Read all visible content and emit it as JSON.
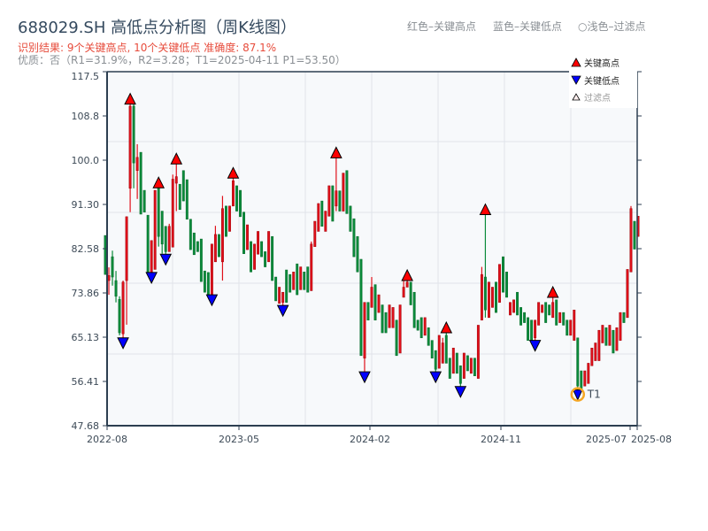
{
  "header": {
    "title": "688029.SH 高低点分析图（周K线图）",
    "result": "识别结果: 9个关键高点, 10个关键低点  准确度: 87.1%",
    "quality": "优质：否（R1=31.9%，R2=3.28；T1=2025-04-11 P1=53.50）",
    "color_key": [
      "红色–关键高点",
      "蓝色–关键低点",
      "○浅色–过滤点"
    ]
  },
  "colors": {
    "up": "#e0101a",
    "down": "#0a8a3a",
    "high_marker": "#ff0000",
    "low_marker": "#0000ff",
    "t1": "#f5a623"
  },
  "chart_data": {
    "type": "candlestick",
    "title": "688029.SH 高低点分析图（周K线图）",
    "ylim": [
      47.68,
      117.5
    ],
    "y_ticks": [
      "117.5",
      "108.8",
      "100.0",
      "91.30",
      "82.58",
      "73.86",
      "65.13",
      "56.41",
      "47.68"
    ],
    "x_ticks": [
      "2022-08",
      "2023-05",
      "2024-02",
      "2024-11",
      "2025-07",
      "2025-08"
    ],
    "grid": true,
    "legend_position": "top-right",
    "legend": [
      "关键高点",
      "关键低点",
      "过滤点"
    ],
    "annotation": "T1",
    "candle_fields": [
      "open",
      "high",
      "low",
      "close",
      "marker"
    ],
    "candles": [
      [
        85.2,
        85.2,
        77.5,
        77.5,
        ""
      ],
      [
        76.3,
        78.9,
        73.5,
        77.3,
        ""
      ],
      [
        81.0,
        82.2,
        75.3,
        77.0,
        ""
      ],
      [
        76.3,
        78.2,
        72.0,
        73.2,
        ""
      ],
      [
        72.6,
        73.2,
        65.5,
        66.0,
        ""
      ],
      [
        65.8,
        76.3,
        65.0,
        76.0,
        "L"
      ],
      [
        76.3,
        88.9,
        67.6,
        88.9,
        ""
      ],
      [
        94.5,
        111.1,
        89.8,
        110.7,
        "H"
      ],
      [
        110.7,
        111.1,
        94.5,
        99.5,
        ""
      ],
      [
        98.0,
        103.2,
        92.4,
        100.6,
        ""
      ],
      [
        101.6,
        101.6,
        89.4,
        89.4,
        ""
      ],
      [
        94.1,
        94.1,
        89.8,
        89.8,
        ""
      ],
      [
        89.2,
        89.2,
        78.0,
        78.0,
        ""
      ],
      [
        77.9,
        84.2,
        77.9,
        84.2,
        "L"
      ],
      [
        78.5,
        94.1,
        78.5,
        94.1,
        ""
      ],
      [
        94.6,
        94.6,
        83.0,
        85.0,
        "H"
      ],
      [
        90.0,
        90.0,
        81.6,
        83.5,
        ""
      ],
      [
        87.0,
        87.0,
        81.5,
        82.0,
        "L"
      ],
      [
        82.0,
        87.5,
        82.0,
        87.0,
        ""
      ],
      [
        82.9,
        97.2,
        82.9,
        96.3,
        ""
      ],
      [
        95.5,
        99.3,
        90.0,
        96.8,
        "H"
      ],
      [
        95.3,
        95.3,
        90.3,
        90.3,
        ""
      ],
      [
        98,
        98,
        92,
        92,
        ""
      ],
      [
        96.2,
        96.2,
        88.4,
        88.4,
        ""
      ],
      [
        88.4,
        88.4,
        82.4,
        82.4,
        ""
      ],
      [
        85.7,
        85.7,
        81.4,
        81.4,
        ""
      ],
      [
        84,
        84,
        82,
        82,
        ""
      ],
      [
        84.5,
        84.5,
        76.1,
        76.1,
        ""
      ],
      [
        78.2,
        78.2,
        74.0,
        74.0,
        ""
      ],
      [
        77.9,
        77.9,
        73.5,
        73.5,
        ""
      ],
      [
        73.5,
        83.5,
        73.5,
        83.5,
        "L"
      ],
      [
        80,
        87.1,
        80,
        85.4,
        ""
      ],
      [
        85.4,
        85.4,
        81,
        81,
        ""
      ],
      [
        80,
        93,
        76.3,
        90.5,
        ""
      ],
      [
        91,
        91,
        85,
        85,
        ""
      ],
      [
        86,
        91,
        86,
        91,
        ""
      ],
      [
        91,
        96.5,
        91,
        96,
        "H"
      ],
      [
        95,
        95,
        90,
        90,
        ""
      ],
      [
        94.1,
        94.1,
        88.9,
        88.9,
        ""
      ],
      [
        89.8,
        89.8,
        81.6,
        81.6,
        ""
      ],
      [
        82.4,
        87.3,
        82.4,
        87.3,
        ""
      ],
      [
        84,
        84,
        78,
        78,
        ""
      ],
      [
        78.5,
        83.5,
        78.5,
        83.5,
        ""
      ],
      [
        81.5,
        86,
        81.5,
        86,
        ""
      ],
      [
        84,
        84,
        81,
        81,
        ""
      ],
      [
        82,
        82,
        79,
        79,
        ""
      ],
      [
        80,
        86,
        80,
        86,
        ""
      ],
      [
        85,
        85,
        76.3,
        76.3,
        ""
      ],
      [
        77,
        77,
        72.3,
        72.3,
        ""
      ],
      [
        71.8,
        75,
        71.8,
        75,
        ""
      ],
      [
        72,
        74,
        71.4,
        74,
        "L"
      ],
      [
        78.4,
        78.4,
        72,
        72,
        ""
      ],
      [
        77.5,
        77.5,
        74,
        74,
        ""
      ],
      [
        74.5,
        78,
        74.5,
        78,
        ""
      ],
      [
        79.6,
        79.6,
        73.5,
        73.5,
        ""
      ],
      [
        74.5,
        79,
        74.5,
        79,
        ""
      ],
      [
        78,
        78,
        74.5,
        74.5,
        ""
      ],
      [
        79,
        79,
        74,
        74,
        ""
      ],
      [
        74.3,
        84,
        74.3,
        83.5,
        ""
      ],
      [
        83,
        88,
        83,
        88,
        ""
      ],
      [
        86,
        91.5,
        86,
        91.5,
        ""
      ],
      [
        92,
        92,
        87,
        87,
        ""
      ],
      [
        86,
        90,
        86,
        90,
        ""
      ],
      [
        89,
        95,
        89,
        95,
        ""
      ],
      [
        95,
        95,
        88,
        88,
        ""
      ],
      [
        91,
        100.5,
        90,
        94,
        "H"
      ],
      [
        94,
        94,
        90,
        90,
        ""
      ],
      [
        90,
        97.5,
        90,
        97.5,
        ""
      ],
      [
        98,
        98,
        89.5,
        89.5,
        ""
      ],
      [
        91,
        91,
        86,
        86,
        ""
      ],
      [
        88.5,
        88.5,
        81,
        81,
        ""
      ],
      [
        85,
        85,
        78,
        78,
        ""
      ],
      [
        80.5,
        80.5,
        61.5,
        61.5,
        ""
      ],
      [
        61,
        72,
        58.3,
        72,
        "L"
      ],
      [
        72,
        72,
        68.5,
        68.5,
        ""
      ],
      [
        71,
        77,
        71,
        75,
        ""
      ],
      [
        75.5,
        75.5,
        68.5,
        68.5,
        ""
      ],
      [
        70,
        73.5,
        70,
        73.5,
        ""
      ],
      [
        71.5,
        71.5,
        66,
        66,
        ""
      ],
      [
        70,
        70,
        66,
        66,
        ""
      ],
      [
        67,
        71.5,
        67,
        71.5,
        ""
      ],
      [
        67,
        71,
        67,
        71,
        ""
      ],
      [
        68.5,
        68.5,
        61.5,
        61.5,
        ""
      ],
      [
        62,
        71.5,
        62,
        71.5,
        ""
      ],
      [
        73,
        77,
        73,
        75,
        ""
      ],
      [
        75,
        76.3,
        75,
        76,
        "H"
      ],
      [
        76,
        76,
        71.5,
        71.5,
        ""
      ],
      [
        74,
        74,
        67,
        67,
        ""
      ],
      [
        68.5,
        68.5,
        66.5,
        66.5,
        ""
      ],
      [
        69,
        69,
        65,
        65,
        ""
      ],
      [
        65.5,
        69,
        65.5,
        69,
        ""
      ],
      [
        67,
        67,
        63.5,
        63.5,
        ""
      ],
      [
        64.5,
        64.5,
        61,
        61,
        ""
      ],
      [
        62.5,
        62.5,
        58.3,
        58.8,
        "L"
      ],
      [
        59,
        65.5,
        59,
        65.5,
        ""
      ],
      [
        60,
        65,
        60,
        64,
        ""
      ],
      [
        65.5,
        66,
        60,
        60,
        "H"
      ],
      [
        61,
        61,
        57,
        57,
        ""
      ],
      [
        58,
        63,
        58,
        63,
        ""
      ],
      [
        62,
        62,
        58,
        58,
        ""
      ],
      [
        59.5,
        59.5,
        55.4,
        56,
        "L"
      ],
      [
        57,
        62,
        57,
        62,
        ""
      ],
      [
        61.5,
        61.5,
        58.5,
        58.5,
        ""
      ],
      [
        58,
        61,
        58,
        61,
        ""
      ],
      [
        61,
        61,
        57.5,
        57.5,
        ""
      ],
      [
        57,
        67.5,
        57,
        67.5,
        ""
      ],
      [
        68.5,
        79,
        68.5,
        77.5,
        ""
      ],
      [
        77,
        89.3,
        69,
        70.5,
        "H"
      ],
      [
        69,
        76,
        69,
        76,
        ""
      ],
      [
        71,
        75,
        71,
        75,
        ""
      ],
      [
        76,
        76,
        70,
        70,
        ""
      ],
      [
        72,
        79.5,
        72,
        79.5,
        ""
      ],
      [
        81,
        81,
        74,
        74,
        ""
      ],
      [
        78,
        78,
        73,
        73,
        ""
      ],
      [
        69.5,
        72,
        69.5,
        72,
        ""
      ],
      [
        70,
        72.5,
        70,
        72.5,
        ""
      ],
      [
        74,
        74,
        69.5,
        69.5,
        ""
      ],
      [
        71,
        71,
        67.5,
        67.5,
        ""
      ],
      [
        70,
        70,
        68,
        68,
        ""
      ],
      [
        69,
        69,
        64.5,
        64.5,
        ""
      ],
      [
        68.5,
        68.5,
        64.5,
        64.5,
        ""
      ],
      [
        65,
        68.5,
        64.5,
        68.5,
        "L"
      ],
      [
        67.5,
        72,
        67.5,
        72,
        ""
      ],
      [
        70,
        71.5,
        70,
        71.5,
        ""
      ],
      [
        72,
        72,
        68,
        68,
        ""
      ],
      [
        71.5,
        71.5,
        69.5,
        69.5,
        ""
      ],
      [
        69,
        73,
        69,
        72,
        "H"
      ],
      [
        72.5,
        72.5,
        67.5,
        67.5,
        ""
      ],
      [
        68,
        70,
        68,
        70,
        ""
      ],
      [
        70,
        70,
        67.5,
        67.5,
        ""
      ],
      [
        68.5,
        68.5,
        65.5,
        65.5,
        ""
      ],
      [
        65.5,
        68.5,
        65.5,
        68.5,
        ""
      ],
      [
        64.5,
        70.5,
        64.5,
        70.5,
        ""
      ],
      [
        65,
        65,
        53.5,
        55.5,
        "T1"
      ],
      [
        58.5,
        58.5,
        55,
        55,
        ""
      ],
      [
        55.5,
        58.5,
        55.5,
        58.5,
        ""
      ],
      [
        56,
        60,
        56,
        60,
        ""
      ],
      [
        59.5,
        63,
        59.5,
        63,
        ""
      ],
      [
        60.5,
        64,
        60.5,
        64,
        ""
      ],
      [
        60.5,
        66.5,
        60.5,
        66.5,
        ""
      ],
      [
        64,
        67.5,
        64,
        67.5,
        ""
      ],
      [
        67,
        67,
        63.5,
        63.5,
        ""
      ],
      [
        63.5,
        67.5,
        63.5,
        67.5,
        ""
      ],
      [
        66.5,
        66.5,
        62,
        62,
        ""
      ],
      [
        62.5,
        67,
        62.5,
        67,
        ""
      ],
      [
        64.5,
        70,
        64.5,
        70,
        ""
      ],
      [
        70,
        70,
        68,
        68,
        ""
      ],
      [
        69,
        78.5,
        69,
        78.5,
        ""
      ],
      [
        78,
        91,
        78,
        90.5,
        ""
      ],
      [
        88,
        88,
        82.5,
        82.5,
        ""
      ],
      [
        85,
        89,
        85,
        89,
        ""
      ]
    ]
  }
}
